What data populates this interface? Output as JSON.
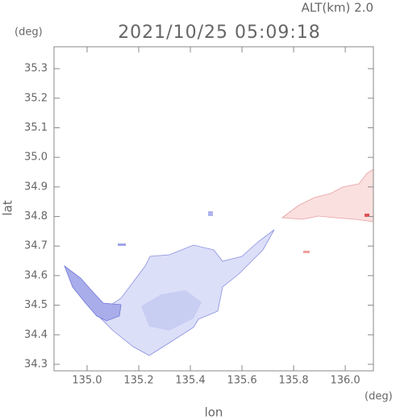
{
  "chart_data": {
    "type": "map",
    "title": "2021/10/25 05:09:18",
    "subtitle": "ALT(km) 2.0",
    "x_label": "lon",
    "y_label": "lat",
    "x_unit": "(deg)",
    "y_unit": "(deg)",
    "xlim": [
      134.872,
      136.109
    ],
    "ylim": [
      34.278,
      35.374
    ],
    "xticks": [
      {
        "value": 135,
        "label": "135.0"
      },
      135.2,
      135.4,
      135.6,
      135.8,
      {
        "value": 136,
        "label": "136.0"
      }
    ],
    "yticks": [
      {
        "value": 34.3,
        "label": "34.3"
      },
      34.4,
      34.5,
      34.6,
      34.7,
      34.8,
      34.9,
      {
        "value": 35,
        "label": "35.0"
      },
      35.1,
      35.2,
      35.3
    ],
    "frame_color": "#888888"
  }
}
